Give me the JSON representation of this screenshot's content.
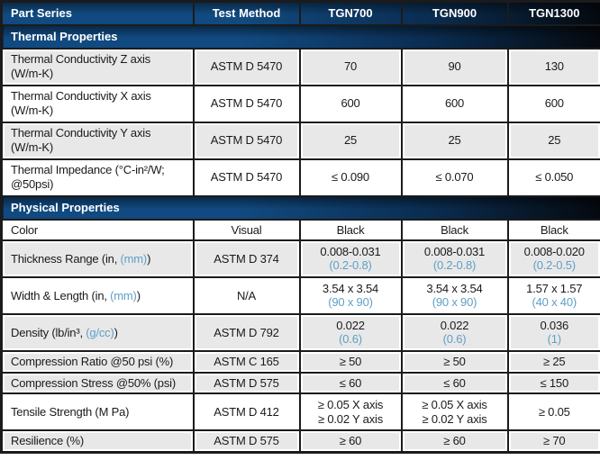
{
  "table": {
    "columns": [
      "Part Series",
      "Test Method",
      "TGN700",
      "TGN900",
      "TGN1300"
    ],
    "sections": [
      {
        "title": "Thermal Properties",
        "rows": [
          {
            "label": "Thermal Conductivity Z axis\n(W/m-K)",
            "method": "ASTM D 5470",
            "values": [
              "70",
              "90",
              "130"
            ],
            "shaded": true
          },
          {
            "label": "Thermal Conductivity X axis\n(W/m-K)",
            "method": "ASTM D 5470",
            "values": [
              "600",
              "600",
              "600"
            ],
            "shaded": false
          },
          {
            "label": "Thermal Conductivity Y axis\n(W/m-K)",
            "method": "ASTM D 5470",
            "values": [
              "25",
              "25",
              "25"
            ],
            "shaded": true
          },
          {
            "label": "Thermal Impedance (°C-in²/W;\n@50psi)",
            "method": "ASTM D 5470",
            "values": [
              "≤ 0.090",
              "≤ 0.070",
              "≤ 0.050"
            ],
            "shaded": false
          }
        ]
      },
      {
        "title": "Physical Properties",
        "rows": [
          {
            "label": "Color",
            "method": "Visual",
            "values": [
              "Black",
              "Black",
              "Black"
            ],
            "shaded": false
          },
          {
            "parts": [
              {
                "t": "Thickness Range (in, "
              },
              {
                "t": "(mm)",
                "blue": true
              },
              {
                "t": ")"
              }
            ],
            "method": "ASTM D 374",
            "values": [
              {
                "main": "0.008-0.031",
                "sub": "(0.2-0.8)"
              },
              {
                "main": "0.008-0.031",
                "sub": "(0.2-0.8)"
              },
              {
                "main": "0.008-0.020",
                "sub": "(0.2-0.5)"
              }
            ],
            "shaded": true
          },
          {
            "parts": [
              {
                "t": "Width & Length (in, "
              },
              {
                "t": "(mm)",
                "blue": true
              },
              {
                "t": ")"
              }
            ],
            "method": "N/A",
            "values": [
              {
                "main": "3.54 x 3.54",
                "sub": "(90 x 90)"
              },
              {
                "main": "3.54 x 3.54",
                "sub": "(90 x 90)"
              },
              {
                "main": "1.57 x 1.57",
                "sub": "(40 x 40)"
              }
            ],
            "shaded": false
          },
          {
            "parts": [
              {
                "t": "Density (lb/in³, "
              },
              {
                "t": "(g/cc)",
                "blue": true
              },
              {
                "t": ")"
              }
            ],
            "method": "ASTM D 792",
            "values": [
              {
                "main": "0.022",
                "sub": "(0.6)"
              },
              {
                "main": "0.022",
                "sub": "(0.6)"
              },
              {
                "main": "0.036",
                "sub": "(1)"
              }
            ],
            "shaded": true
          },
          {
            "label": "Compression Ratio @50 psi (%)",
            "method": "ASTM C 165",
            "values": [
              "≥ 50",
              "≥ 50",
              "≥ 25"
            ],
            "shaded": true
          },
          {
            "label": "Compression Stress @50% (psi)",
            "method": "ASTM D 575",
            "values": [
              "≤ 60",
              "≤ 60",
              "≤ 150"
            ],
            "shaded": true
          },
          {
            "label": "Tensile Strength (M Pa)",
            "method": "ASTM D 412",
            "values": [
              {
                "main": "≥ 0.05 X axis\n≥ 0.02 Y axis"
              },
              {
                "main": "≥ 0.05 X axis\n≥ 0.02 Y axis"
              },
              {
                "main": "≥ 0.05"
              }
            ],
            "shaded": false
          },
          {
            "label": "Resilience (%)",
            "method": "ASTM D 575",
            "values": [
              "≥ 60",
              "≥ 60",
              "≥ 70"
            ],
            "shaded": true
          }
        ]
      }
    ]
  },
  "colors": {
    "band_blue": "#114a80",
    "band_dark": "#05090f",
    "row_shaded_bg": "#e8e8e8",
    "accent_text_blue": "#5f9fc6",
    "grid_border": "#1b1b1b",
    "header_text": "#ffffff",
    "body_text": "#1a1a1a"
  }
}
